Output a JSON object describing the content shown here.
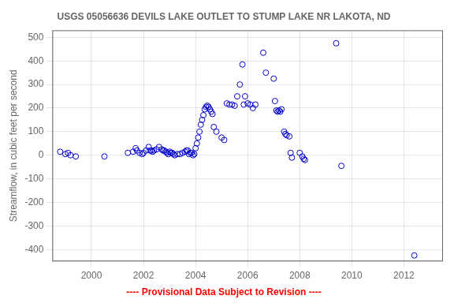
{
  "chart_data": {
    "type": "scatter",
    "title": "USGS 05056636 DEVILS LAKE OUTLET TO STUMP LAKE NR LAKOTA, ND",
    "ylabel": "Streamflow, in cubic feet per second",
    "annotations": [
      {
        "text": "---- Provisional Data Subject to Revision ----",
        "color": "#ff0000"
      }
    ],
    "xlim": [
      1998.5,
      2013.5
    ],
    "ylim": [
      -450,
      530
    ],
    "xticks": [
      2000,
      2002,
      2004,
      2006,
      2008,
      2010,
      2012
    ],
    "yticks": [
      -400,
      -300,
      -200,
      -100,
      0,
      100,
      200,
      300,
      400,
      500
    ],
    "grid": true,
    "color": "#0000CC",
    "marker": "hollow_circle",
    "x": [
      1998.8,
      1999.0,
      1999.1,
      1999.2,
      1999.4,
      2000.5,
      2001.4,
      2001.6,
      2001.7,
      2001.75,
      2001.85,
      2001.95,
      2002.0,
      2002.1,
      2002.2,
      2002.25,
      2002.3,
      2002.35,
      2002.4,
      2002.5,
      2002.6,
      2002.7,
      2002.75,
      2002.8,
      2002.85,
      2002.9,
      2002.95,
      2003.0,
      2003.05,
      2003.1,
      2003.15,
      2003.2,
      2003.3,
      2003.4,
      2003.5,
      2003.6,
      2003.65,
      2003.7,
      2003.75,
      2003.8,
      2003.85,
      2003.9,
      2003.95,
      2004.0,
      2004.05,
      2004.1,
      2004.15,
      2004.2,
      2004.25,
      2004.3,
      2004.35,
      2004.4,
      2004.45,
      2004.5,
      2004.55,
      2004.6,
      2004.65,
      2004.7,
      2004.8,
      2005.0,
      2005.1,
      2005.2,
      2005.3,
      2005.4,
      2005.5,
      2005.6,
      2005.7,
      2005.8,
      2005.85,
      2005.9,
      2006.0,
      2006.1,
      2006.2,
      2006.3,
      2006.6,
      2006.7,
      2007.0,
      2007.05,
      2007.1,
      2007.15,
      2007.2,
      2007.25,
      2007.3,
      2007.4,
      2007.45,
      2007.5,
      2007.6,
      2007.65,
      2007.7,
      2008.0,
      2008.1,
      2008.15,
      2008.2,
      2009.4,
      2009.6,
      2012.4
    ],
    "values": [
      15,
      5,
      10,
      0,
      -5,
      -5,
      10,
      15,
      30,
      20,
      10,
      5,
      10,
      20,
      35,
      20,
      20,
      15,
      20,
      25,
      35,
      25,
      20,
      20,
      15,
      10,
      5,
      15,
      10,
      10,
      5,
      0,
      5,
      5,
      10,
      15,
      20,
      20,
      5,
      10,
      10,
      0,
      5,
      30,
      50,
      75,
      100,
      130,
      150,
      170,
      195,
      205,
      210,
      205,
      195,
      185,
      175,
      120,
      100,
      75,
      65,
      220,
      215,
      215,
      210,
      250,
      300,
      385,
      215,
      250,
      220,
      215,
      200,
      215,
      435,
      350,
      325,
      230,
      190,
      185,
      190,
      185,
      195,
      100,
      90,
      85,
      80,
      10,
      -10,
      10,
      -5,
      -15,
      -20,
      475,
      -45,
      -425
    ]
  }
}
